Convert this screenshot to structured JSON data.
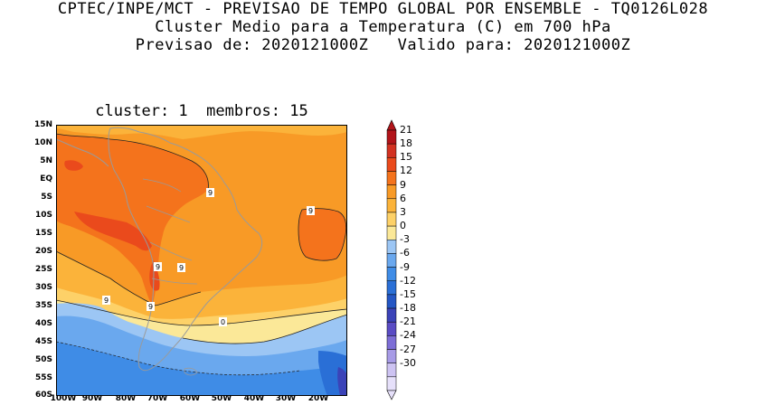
{
  "header": {
    "line1": "CPTEC/INPE/MCT - PREVISAO DE TEMPO GLOBAL POR ENSEMBLE - TQ0126L028",
    "line2": "Cluster Medio para a Temperatura (C) em 700 hPa",
    "line3": "Previsao de: 2020121000Z   Valido para: 2020121000Z"
  },
  "panel": {
    "subtitle": "cluster: 1  membros: 15"
  },
  "axes": {
    "lat_labels": [
      "15N",
      "10N",
      "5N",
      "EQ",
      "5S",
      "10S",
      "15S",
      "20S",
      "25S",
      "30S",
      "35S",
      "40S",
      "45S",
      "50S",
      "55S",
      "60S"
    ],
    "lon_labels": [
      "100W",
      "90W",
      "80W",
      "70W",
      "60W",
      "50W",
      "40W",
      "30W",
      "20W"
    ]
  },
  "contour_labels": [
    "9",
    "9",
    "9",
    "9",
    "9",
    "9",
    "0"
  ],
  "colorbar": {
    "labels": [
      "21",
      "18",
      "15",
      "12",
      "9",
      "6",
      "3",
      "0",
      "-3",
      "-6",
      "-9",
      "-12",
      "-15",
      "-18",
      "-21",
      "-24",
      "-27",
      "-30"
    ],
    "colors": [
      "#b2141a",
      "#d23222",
      "#ea4a1c",
      "#f4731c",
      "#f89a26",
      "#fbb33a",
      "#fdd168",
      "#fbe898",
      "#9cc6f4",
      "#6aa8ee",
      "#3f8ce6",
      "#2a6fd6",
      "#2456c4",
      "#3b43b8",
      "#5a4cc4",
      "#7d6ed6",
      "#a79be6",
      "#cdc3f2",
      "#e6e0fa"
    ]
  }
}
